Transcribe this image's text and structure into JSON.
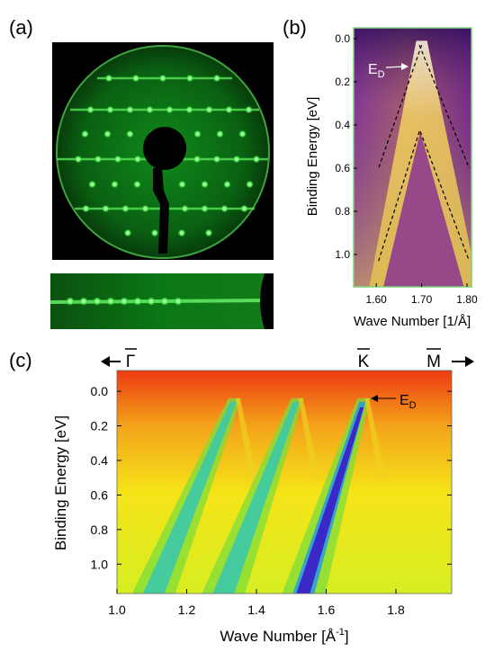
{
  "panels": {
    "a": {
      "label": "(a)"
    },
    "b": {
      "label": "(b)",
      "xlabel": "Wave Number [1/Å]",
      "ylabel": "Binding Energy [eV]",
      "xticks": [
        "1.60",
        "1.70",
        "1.80"
      ],
      "yticks": [
        "0.0",
        "0.2",
        "0.4",
        "0.6",
        "0.8",
        "1.0"
      ],
      "annotation_main": "E",
      "annotation_sub": "D"
    },
    "c": {
      "label": "(c)",
      "xlabel_main": "Wave Number  [Å",
      "xlabel_sup": "-1",
      "xlabel_end": "]",
      "ylabel": "Binding  Energy [eV]",
      "xticks": [
        "1.0",
        "1.2",
        "1.4",
        "1.6",
        "1.8"
      ],
      "yticks": [
        "0.0",
        "0.2",
        "0.4",
        "0.6",
        "0.8",
        "1.0"
      ],
      "gamma_label": "Γ",
      "k_label": "K",
      "m_label": "M",
      "annotation_main": "E",
      "annotation_sub": "D"
    }
  },
  "chart_data": [
    {
      "type": "heatmap",
      "panel": "b",
      "xlim": [
        1.55,
        1.81
      ],
      "ylim": [
        1.15,
        -0.05
      ],
      "dirac_point": {
        "x": 1.7,
        "y": 0.05
      },
      "guide_lines": [
        {
          "x": [
            1.7,
            1.605
          ],
          "y": [
            0.03,
            0.6
          ]
        },
        {
          "x": [
            1.695,
            1.805
          ],
          "y": [
            0.03,
            0.6
          ]
        },
        {
          "x": [
            1.695,
            1.605
          ],
          "y": [
            0.43,
            1.03
          ]
        },
        {
          "x": [
            1.697,
            1.805
          ],
          "y": [
            0.43,
            1.03
          ]
        }
      ]
    },
    {
      "type": "heatmap",
      "panel": "c",
      "xlim": [
        1.0,
        1.96
      ],
      "ylim": [
        1.17,
        -0.12
      ],
      "dirac_point": {
        "x": 1.7,
        "y": 0.04
      },
      "special_points": {
        "K": 1.7
      },
      "bands": [
        {
          "top_x": 1.33,
          "bottom_x": 1.1
        },
        {
          "top_x": 1.51,
          "bottom_x": 1.3
        },
        {
          "top_x": 1.7,
          "bottom_x": 1.53
        }
      ]
    }
  ]
}
